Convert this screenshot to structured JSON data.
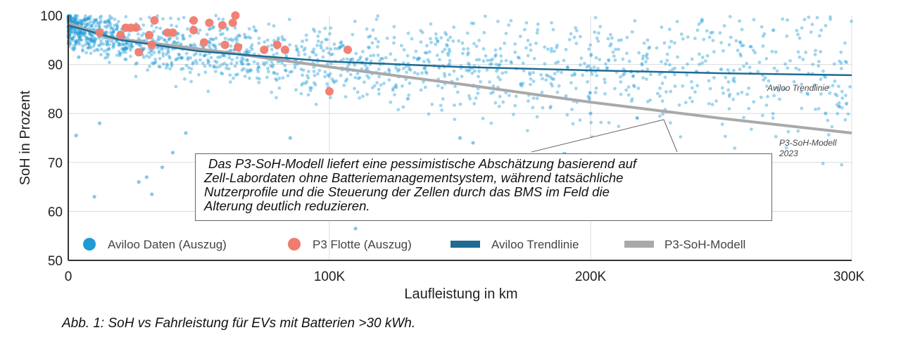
{
  "chart_data": {
    "type": "scatter",
    "xlabel": "Laufleistung in km",
    "ylabel": "SoH in Prozent",
    "xlim": [
      0,
      300000
    ],
    "ylim": [
      50,
      100
    ],
    "x_ticks": [
      {
        "value": 0,
        "label": "0"
      },
      {
        "value": 100000,
        "label": "100K"
      },
      {
        "value": 200000,
        "label": "200K"
      },
      {
        "value": 300000,
        "label": "300K"
      }
    ],
    "y_ticks": [
      {
        "value": 50,
        "label": "50"
      },
      {
        "value": 60,
        "label": "60"
      },
      {
        "value": 70,
        "label": "70"
      },
      {
        "value": 80,
        "label": "80"
      },
      {
        "value": 90,
        "label": "90"
      },
      {
        "value": 100,
        "label": "100"
      }
    ],
    "grid": true,
    "legend_position": "bottom-inside",
    "series": [
      {
        "name": "Aviloo Daten (Auszug)",
        "type": "scatter",
        "color": "#1e9ad6",
        "x": [
          4000,
          10000,
          12000,
          3000,
          27000,
          30000,
          36000,
          32000,
          40000,
          45000,
          60000,
          80000,
          85000,
          90000,
          110000,
          130000,
          150000,
          155000,
          170000,
          190000,
          200000,
          230000,
          250000,
          270000,
          290000,
          298000
        ],
        "y": [
          91.5,
          63,
          78,
          75.5,
          66,
          67,
          69,
          63.5,
          72,
          76,
          71,
          69,
          75,
          70,
          56.5,
          83,
          75,
          74,
          71,
          72,
          80,
          67,
          89,
          97,
          80,
          82
        ]
      },
      {
        "name": "P3 Flotte (Auszug)",
        "type": "scatter",
        "color": "#f07b6e",
        "x": [
          12000,
          20000,
          22000,
          24000,
          26000,
          27000,
          31000,
          32000,
          33000,
          38000,
          40000,
          48000,
          48000,
          52000,
          54000,
          59000,
          60000,
          63000,
          64000,
          65000,
          75000,
          80000,
          83000,
          100000,
          107000
        ],
        "y": [
          96.5,
          96,
          97.5,
          97.5,
          97.5,
          92.5,
          96,
          94,
          99,
          96.5,
          96.5,
          97,
          99,
          94.5,
          98.5,
          98,
          94,
          98.5,
          100,
          93.5,
          93,
          94,
          93,
          84.5,
          93
        ]
      },
      {
        "name": "Aviloo Trendlinie",
        "type": "line",
        "color": "#1f6b94",
        "x": [
          0,
          20000,
          50000,
          100000,
          150000,
          200000,
          250000,
          300000
        ],
        "y": [
          98,
          95,
          92.7,
          90.6,
          89.5,
          88.8,
          88.2,
          87.8
        ]
      },
      {
        "name": "P3-SoH-Modell",
        "type": "line",
        "color": "#a9a9a9",
        "x": [
          0,
          15000,
          30000,
          60000,
          100000,
          150000,
          200000,
          250000,
          300000
        ],
        "y": [
          98.5,
          95.5,
          94.5,
          92.5,
          89.5,
          86,
          82.3,
          79,
          76
        ]
      }
    ],
    "annotations": [
      {
        "text": "Aviloo Trendlinie"
      },
      {
        "text": "P3-SoH-Modell",
        "subtext": "2023"
      }
    ]
  },
  "callout": {
    "lines": [
      "Das P3-SoH-Modell liefert eine pessimistische Abschätzung basierend auf",
      "Zell-Labordaten ohne Batteriemanagementsystem, während tatsächliche",
      "Nutzerprofile und die Steuerung der Zellen durch das BMS im Feld die",
      "Alterung deutlich reduzieren."
    ]
  },
  "caption": "Abb. 1: SoH vs Fahrleistung für EVs mit Batterien >30 kWh."
}
